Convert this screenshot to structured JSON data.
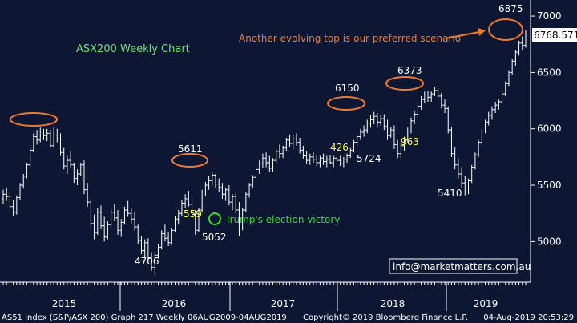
{
  "chart_data": {
    "type": "ohlc",
    "title": "ASX200 Weekly Chart",
    "x_axis": {
      "years": [
        "2015",
        "2016",
        "2017",
        "2018",
        "2019"
      ]
    },
    "y_axis": {
      "ticks": [
        5000,
        5500,
        6000,
        6500,
        7000
      ],
      "tick_labels": [
        "5000",
        "5500",
        "6000",
        "6500",
        "7000"
      ],
      "ylim": [
        4640,
        7100
      ],
      "last_price_label": "6768.571",
      "last_price": 6768.571
    },
    "series": [
      {
        "weeks": [
          [
            5380,
            5460,
            5330,
            5420
          ],
          [
            5420,
            5480,
            5360,
            5400
          ],
          [
            5400,
            5440,
            5290,
            5310
          ],
          [
            5310,
            5370,
            5230,
            5260
          ],
          [
            5260,
            5410,
            5240,
            5390
          ],
          [
            5390,
            5520,
            5370,
            5500
          ],
          [
            5500,
            5600,
            5470,
            5580
          ],
          [
            5580,
            5700,
            5560,
            5680
          ],
          [
            5680,
            5830,
            5660,
            5810
          ],
          [
            5810,
            5960,
            5790,
            5930
          ],
          [
            5930,
            5990,
            5860,
            5900
          ],
          [
            5900,
            6010,
            5880,
            5980
          ],
          [
            5980,
            6000,
            5900,
            5940
          ],
          [
            5940,
            6000,
            5890,
            5960
          ],
          [
            5960,
            5990,
            5830,
            5850
          ],
          [
            5850,
            6010,
            5840,
            5980
          ],
          [
            5980,
            6000,
            5880,
            5910
          ],
          [
            5910,
            5960,
            5760,
            5790
          ],
          [
            5790,
            5830,
            5640,
            5670
          ],
          [
            5670,
            5760,
            5600,
            5720
          ],
          [
            5720,
            5800,
            5650,
            5680
          ],
          [
            5680,
            5700,
            5520,
            5560
          ],
          [
            5560,
            5640,
            5500,
            5600
          ],
          [
            5600,
            5700,
            5580,
            5680
          ],
          [
            5680,
            5720,
            5420,
            5460
          ],
          [
            5460,
            5520,
            5310,
            5350
          ],
          [
            5350,
            5390,
            5120,
            5160
          ],
          [
            5160,
            5240,
            5020,
            5080
          ],
          [
            5080,
            5300,
            5060,
            5260
          ],
          [
            5260,
            5320,
            5110,
            5140
          ],
          [
            5140,
            5220,
            5000,
            5040
          ],
          [
            5040,
            5180,
            5020,
            5150
          ],
          [
            5150,
            5290,
            5130,
            5260
          ],
          [
            5260,
            5330,
            5180,
            5210
          ],
          [
            5210,
            5280,
            5060,
            5100
          ],
          [
            5100,
            5200,
            5040,
            5170
          ],
          [
            5170,
            5310,
            5150,
            5280
          ],
          [
            5280,
            5360,
            5220,
            5250
          ],
          [
            5250,
            5300,
            5160,
            5200
          ],
          [
            5200,
            5260,
            5100,
            5130
          ],
          [
            5130,
            5150,
            4980,
            5010
          ],
          [
            5010,
            5050,
            4890,
            4920
          ],
          [
            4920,
            5020,
            4860,
            4990
          ],
          [
            4990,
            5030,
            4820,
            4850
          ],
          [
            4850,
            4900,
            4740,
            4770
          ],
          [
            4770,
            4900,
            4706,
            4880
          ],
          [
            4880,
            4980,
            4850,
            4950
          ],
          [
            4950,
            5100,
            4930,
            5070
          ],
          [
            5070,
            5150,
            5000,
            5030
          ],
          [
            5030,
            5080,
            4960,
            4990
          ],
          [
            4990,
            5120,
            4970,
            5100
          ],
          [
            5100,
            5230,
            5080,
            5200
          ],
          [
            5200,
            5280,
            5150,
            5250
          ],
          [
            5250,
            5370,
            5230,
            5340
          ],
          [
            5340,
            5420,
            5300,
            5380
          ],
          [
            5380,
            5450,
            5310,
            5330
          ],
          [
            5330,
            5400,
            5200,
            5240
          ],
          [
            5240,
            5280,
            5060,
            5100
          ],
          [
            5100,
            5300,
            5080,
            5280
          ],
          [
            5280,
            5460,
            5260,
            5440
          ],
          [
            5440,
            5530,
            5400,
            5500
          ],
          [
            5500,
            5580,
            5460,
            5540
          ],
          [
            5540,
            5611,
            5500,
            5590
          ],
          [
            5590,
            5600,
            5480,
            5510
          ],
          [
            5510,
            5560,
            5440,
            5480
          ],
          [
            5480,
            5520,
            5380,
            5420
          ],
          [
            5420,
            5480,
            5360,
            5460
          ],
          [
            5460,
            5500,
            5320,
            5350
          ],
          [
            5350,
            5420,
            5280,
            5400
          ],
          [
            5400,
            5430,
            5250,
            5280
          ],
          [
            5280,
            5350,
            5052,
            5120
          ],
          [
            5120,
            5300,
            5100,
            5280
          ],
          [
            5280,
            5440,
            5260,
            5420
          ],
          [
            5420,
            5520,
            5390,
            5500
          ],
          [
            5500,
            5590,
            5470,
            5570
          ],
          [
            5570,
            5660,
            5540,
            5640
          ],
          [
            5640,
            5720,
            5600,
            5690
          ],
          [
            5690,
            5780,
            5650,
            5740
          ],
          [
            5740,
            5790,
            5660,
            5700
          ],
          [
            5700,
            5760,
            5620,
            5650
          ],
          [
            5650,
            5740,
            5620,
            5720
          ],
          [
            5720,
            5820,
            5700,
            5800
          ],
          [
            5800,
            5860,
            5740,
            5780
          ],
          [
            5780,
            5850,
            5740,
            5830
          ],
          [
            5830,
            5920,
            5800,
            5900
          ],
          [
            5900,
            5950,
            5840,
            5870
          ],
          [
            5870,
            5940,
            5820,
            5910
          ],
          [
            5910,
            5960,
            5850,
            5880
          ],
          [
            5880,
            5920,
            5780,
            5810
          ],
          [
            5810,
            5850,
            5730,
            5760
          ],
          [
            5760,
            5800,
            5690,
            5720
          ],
          [
            5720,
            5780,
            5680,
            5750
          ],
          [
            5750,
            5790,
            5700,
            5730
          ],
          [
            5730,
            5770,
            5670,
            5700
          ],
          [
            5700,
            5760,
            5660,
            5740
          ],
          [
            5740,
            5780,
            5680,
            5710
          ],
          [
            5710,
            5760,
            5660,
            5730
          ],
          [
            5730,
            5770,
            5690,
            5700
          ],
          [
            5700,
            5760,
            5660,
            5740
          ],
          [
            5740,
            5790,
            5700,
            5720
          ],
          [
            5720,
            5760,
            5670,
            5690
          ],
          [
            5690,
            5750,
            5660,
            5730
          ],
          [
            5730,
            5780,
            5700,
            5760
          ],
          [
            5760,
            5830,
            5740,
            5810
          ],
          [
            5810,
            5900,
            5790,
            5880
          ],
          [
            5880,
            5950,
            5850,
            5930
          ],
          [
            5930,
            6000,
            5900,
            5970
          ],
          [
            5970,
            6030,
            5930,
            5990
          ],
          [
            5990,
            6080,
            5960,
            6050
          ],
          [
            6050,
            6120,
            6010,
            6080
          ],
          [
            6080,
            6150,
            6040,
            6110
          ],
          [
            6110,
            6140,
            6020,
            6060
          ],
          [
            6060,
            6120,
            6030,
            6090
          ],
          [
            6090,
            6130,
            5990,
            6020
          ],
          [
            6020,
            6080,
            5900,
            5940
          ],
          [
            5940,
            6020,
            5920,
            5990
          ],
          [
            5990,
            6030,
            5820,
            5860
          ],
          [
            5860,
            5900,
            5740,
            5780
          ],
          [
            5780,
            5880,
            5724,
            5850
          ],
          [
            5850,
            5930,
            5800,
            5900
          ],
          [
            5900,
            6010,
            5880,
            5980
          ],
          [
            5980,
            6100,
            5960,
            6070
          ],
          [
            6070,
            6160,
            6040,
            6130
          ],
          [
            6130,
            6230,
            6100,
            6200
          ],
          [
            6200,
            6290,
            6170,
            6260
          ],
          [
            6260,
            6330,
            6230,
            6300
          ],
          [
            6300,
            6340,
            6240,
            6280
          ],
          [
            6280,
            6330,
            6240,
            6310
          ],
          [
            6310,
            6373,
            6290,
            6340
          ],
          [
            6340,
            6360,
            6260,
            6290
          ],
          [
            6290,
            6320,
            6180,
            6210
          ],
          [
            6210,
            6260,
            6140,
            6180
          ],
          [
            6180,
            6200,
            5960,
            5990
          ],
          [
            5990,
            6020,
            5750,
            5780
          ],
          [
            5780,
            5840,
            5640,
            5680
          ],
          [
            5680,
            5740,
            5560,
            5600
          ],
          [
            5600,
            5660,
            5480,
            5520
          ],
          [
            5520,
            5580,
            5410,
            5440
          ],
          [
            5440,
            5560,
            5420,
            5540
          ],
          [
            5540,
            5680,
            5520,
            5660
          ],
          [
            5660,
            5790,
            5640,
            5770
          ],
          [
            5770,
            5900,
            5750,
            5880
          ],
          [
            5880,
            6000,
            5860,
            5980
          ],
          [
            5980,
            6080,
            5960,
            6060
          ],
          [
            6060,
            6150,
            6030,
            6120
          ],
          [
            6120,
            6200,
            6080,
            6170
          ],
          [
            6170,
            6240,
            6140,
            6210
          ],
          [
            6210,
            6260,
            6170,
            6240
          ],
          [
            6240,
            6330,
            6220,
            6310
          ],
          [
            6310,
            6420,
            6290,
            6400
          ],
          [
            6400,
            6520,
            6380,
            6500
          ],
          [
            6500,
            6620,
            6480,
            6600
          ],
          [
            6600,
            6700,
            6560,
            6680
          ],
          [
            6680,
            6780,
            6650,
            6760
          ],
          [
            6760,
            6820,
            6700,
            6740
          ],
          [
            6740,
            6875,
            6720,
            6768.571
          ]
        ]
      }
    ],
    "annotations": {
      "peak_labels": [
        "5611",
        "6150",
        "6373",
        "6875"
      ],
      "trough_labels": [
        "4706",
        "5052",
        "5724",
        "5410"
      ],
      "move_labels": [
        "559",
        "426",
        "963"
      ],
      "election_label": "Trump's election victory",
      "scenario_label": "Another evolving top is our preferred scenario",
      "contact_label": "info@marketmatters.com.au"
    },
    "footer": {
      "left": "AS51 Index (S&P/ASX 200) Graph 217  Weekly 06AUG2009-04AUG2019",
      "center": "Copyright© 2019 Bloomberg Finance L.P.",
      "right": "04-Aug-2019 20:53:29"
    },
    "colors": {
      "background": "#0d1633",
      "bars": "#ffffff",
      "highlight": "#f07a2a",
      "title": "#6fe06f",
      "yellow": "#ffff33",
      "green": "#33dd33",
      "axis_text": "#ffffff",
      "price_box": "#ffffff"
    }
  }
}
